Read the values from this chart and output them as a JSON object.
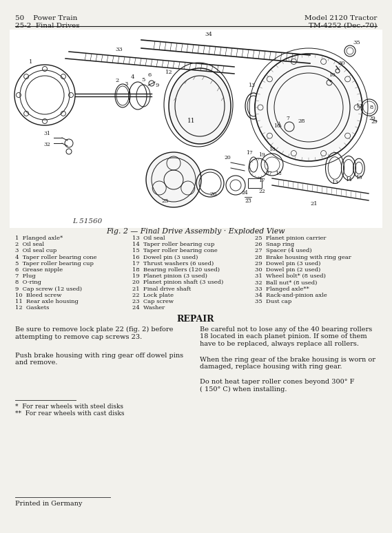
{
  "bg_color": "#ffffff",
  "page_bg": "#f2f1ec",
  "header_left_line1": "50    Power Train",
  "header_left_line2": "25-2  Final Drives",
  "header_right_line1": "Model 2120 Tractor",
  "header_right_line2": "TM-4252 (Dec.-70)",
  "fig_caption": "Fig. 2 — Final Drive Assembly · Exploded View",
  "parts_col1": [
    "1  Flanged axle*",
    "2  Oil seal",
    "3  Oil seal cup",
    "4  Taper roller bearing cone",
    "5  Taper roller bearing cup",
    "6  Grease nipple",
    "7  Plug",
    "8  O-ring",
    "9  Cap screw (12 used)",
    "10  Bleed screw",
    "11  Rear axle housing",
    "12  Gaskets"
  ],
  "parts_col2": [
    "13  Oil seal",
    "14  Taper roller bearing cup",
    "15  Taper roller bearing cone",
    "16  Dowel pin (3 used)",
    "17  Thrust washers (6 used)",
    "18  Bearing rollers (120 used)",
    "19  Planet pinion (3 used)",
    "20  Planet pinion shaft (3 used)",
    "21  Final drive shaft",
    "22  Lock plate",
    "23  Cap screw",
    "24  Washer"
  ],
  "parts_col3": [
    "25  Planet pinion carrier",
    "26  Snap ring",
    "27  Spacer (4 used)",
    "28  Brake housing with ring gear",
    "29  Dowel pin (3 used)",
    "30  Dowel pin (2 used)",
    "31  Wheel bolt* (8 used)",
    "32  Ball nut* (8 used)",
    "33  Flanged axle**",
    "34  Rack-and-pinion axle",
    "35  Dust cap"
  ],
  "repair_title": "REPAIR",
  "repair_col1_para1": "Be sure to remove lock plate 22 (fig. 2) before\nattempting to remove cap screws 23.",
  "repair_col1_para2": "Push brake housing with ring gear off dowel pins\nand remove.",
  "repair_col2_para1": "Be careful not to lose any of the 40 bearing rollers\n18 located in each planet pinion. If some of them\nhave to be replaced, always replace all rollers.",
  "repair_col2_para2": "When the ring gear of the brake housing is worn or\ndamaged, replace housing with ring gear.",
  "repair_col2_para3": "Do not heat taper roller cones beyond 300° F\n( 150° C) when installing.",
  "footnote1": "*  For rear wheels with steel disks",
  "footnote2": "**  For rear wheels with cast disks",
  "footer": "Printed in Germany",
  "diagram_label": "L 51560"
}
